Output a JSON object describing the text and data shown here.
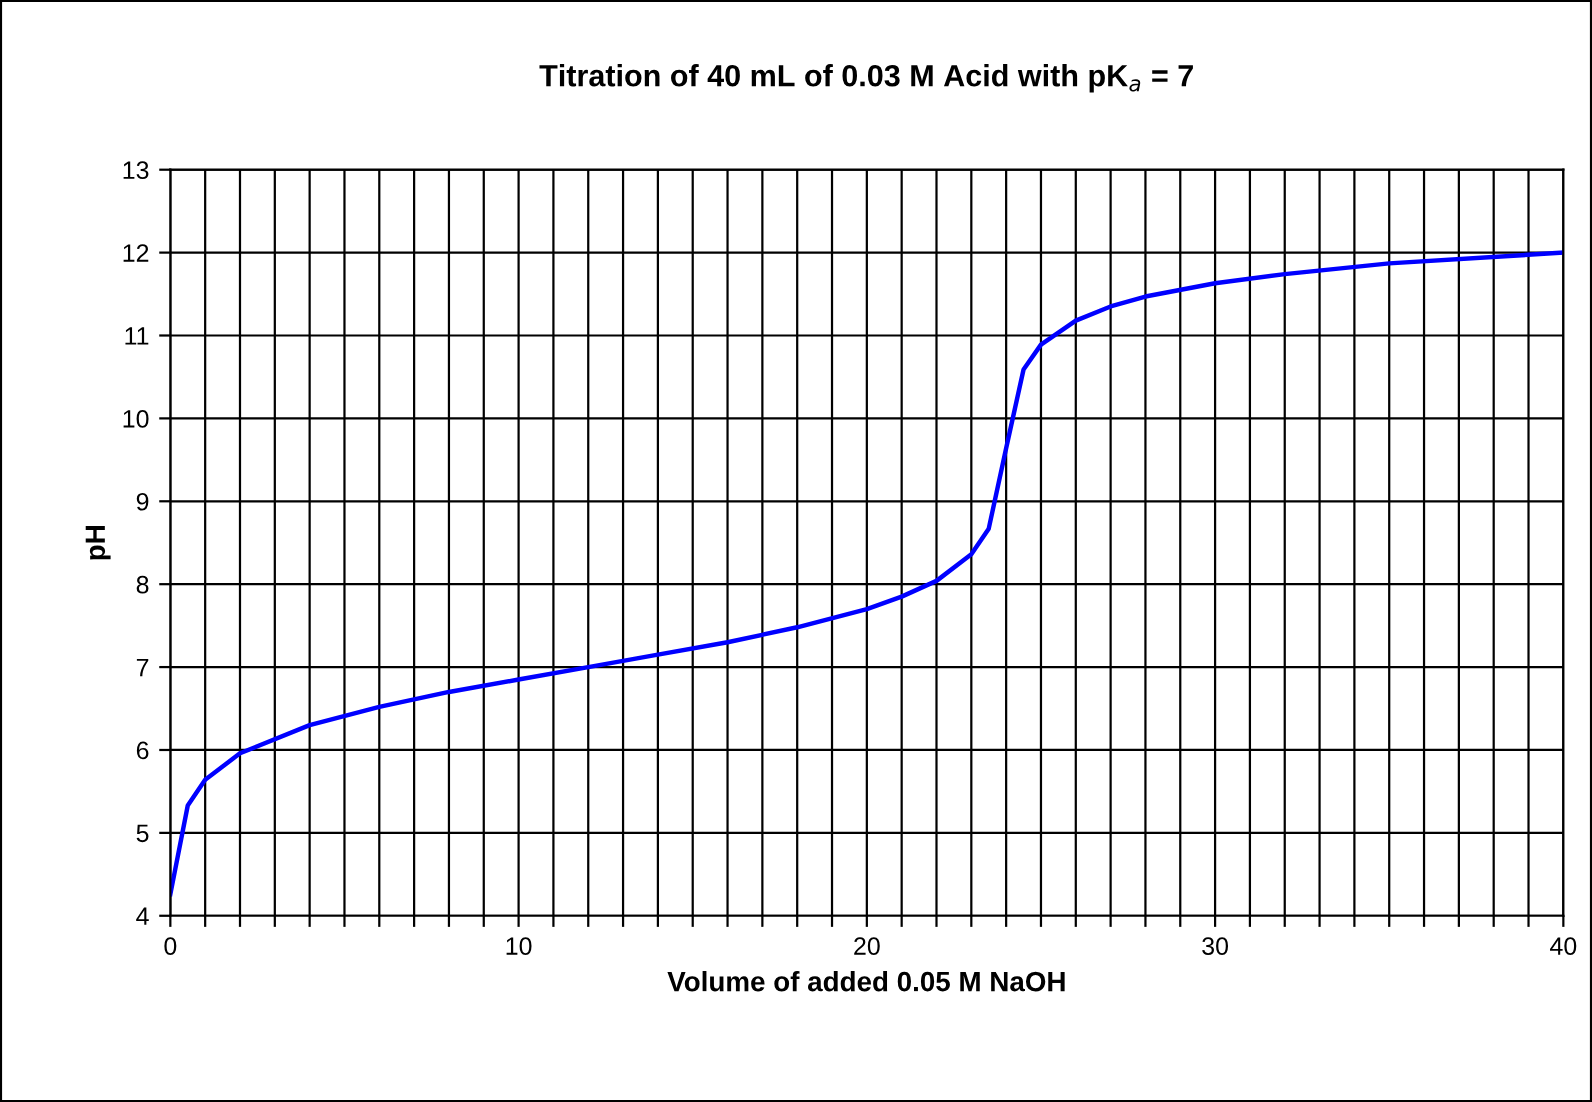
{
  "chart_data": {
    "type": "line",
    "title": "Titration of 40 mL of 0.03 M Acid with pK$_{a}$ = 7",
    "xlabel": "Volume of added 0.05 M NaOH",
    "ylabel": "pH",
    "x": [
      0,
      0.5,
      1,
      2,
      4,
      6,
      8,
      10,
      12,
      14,
      16,
      18,
      20,
      21,
      22,
      23,
      23.5,
      24,
      24.5,
      25,
      26,
      27,
      28,
      30,
      32,
      35,
      40
    ],
    "series": [
      {
        "color": "#0000ff",
        "values": [
          4.26,
          5.33,
          5.64,
          5.96,
          6.3,
          6.52,
          6.7,
          6.85,
          7.0,
          7.15,
          7.3,
          7.48,
          7.7,
          7.85,
          8.04,
          8.36,
          8.67,
          9.64,
          10.59,
          10.89,
          11.18,
          11.35,
          11.47,
          11.63,
          11.74,
          11.87,
          12.0
        ]
      }
    ],
    "xlim": [
      0,
      40
    ],
    "ylim": [
      4,
      13
    ],
    "xticks": [
      0,
      {
        "value": 1,
        "label": null
      },
      {
        "value": 2,
        "label": null
      },
      {
        "value": 3,
        "label": null
      },
      {
        "value": 4,
        "label": null
      },
      {
        "value": 5,
        "label": null
      },
      {
        "value": 6,
        "label": null
      },
      {
        "value": 7,
        "label": null
      },
      {
        "value": 8,
        "label": null
      },
      {
        "value": 9,
        "label": null
      },
      10,
      {
        "value": 11,
        "label": null
      },
      {
        "value": 12,
        "label": null
      },
      {
        "value": 13,
        "label": null
      },
      {
        "value": 14,
        "label": null
      },
      {
        "value": 15,
        "label": null
      },
      {
        "value": 16,
        "label": null
      },
      {
        "value": 17,
        "label": null
      },
      {
        "value": 18,
        "label": null
      },
      {
        "value": 19,
        "label": null
      },
      20,
      {
        "value": 21,
        "label": null
      },
      {
        "value": 22,
        "label": null
      },
      {
        "value": 23,
        "label": null
      },
      {
        "value": 24,
        "label": null
      },
      {
        "value": 25,
        "label": null
      },
      {
        "value": 26,
        "label": null
      },
      {
        "value": 27,
        "label": null
      },
      {
        "value": 28,
        "label": null
      },
      {
        "value": 29,
        "label": null
      },
      30,
      {
        "value": 31,
        "label": null
      },
      {
        "value": 32,
        "label": null
      },
      {
        "value": 33,
        "label": null
      },
      {
        "value": 34,
        "label": null
      },
      {
        "value": 35,
        "label": null
      },
      {
        "value": 36,
        "label": null
      },
      {
        "value": 37,
        "label": null
      },
      {
        "value": 38,
        "label": null
      },
      {
        "value": 39,
        "label": null
      },
      40
    ],
    "yticks": [
      4,
      5,
      6,
      7,
      8,
      9,
      10,
      11,
      12,
      13
    ],
    "grid": true,
    "legend": false,
    "marker": "none",
    "line_style": "solid"
  }
}
